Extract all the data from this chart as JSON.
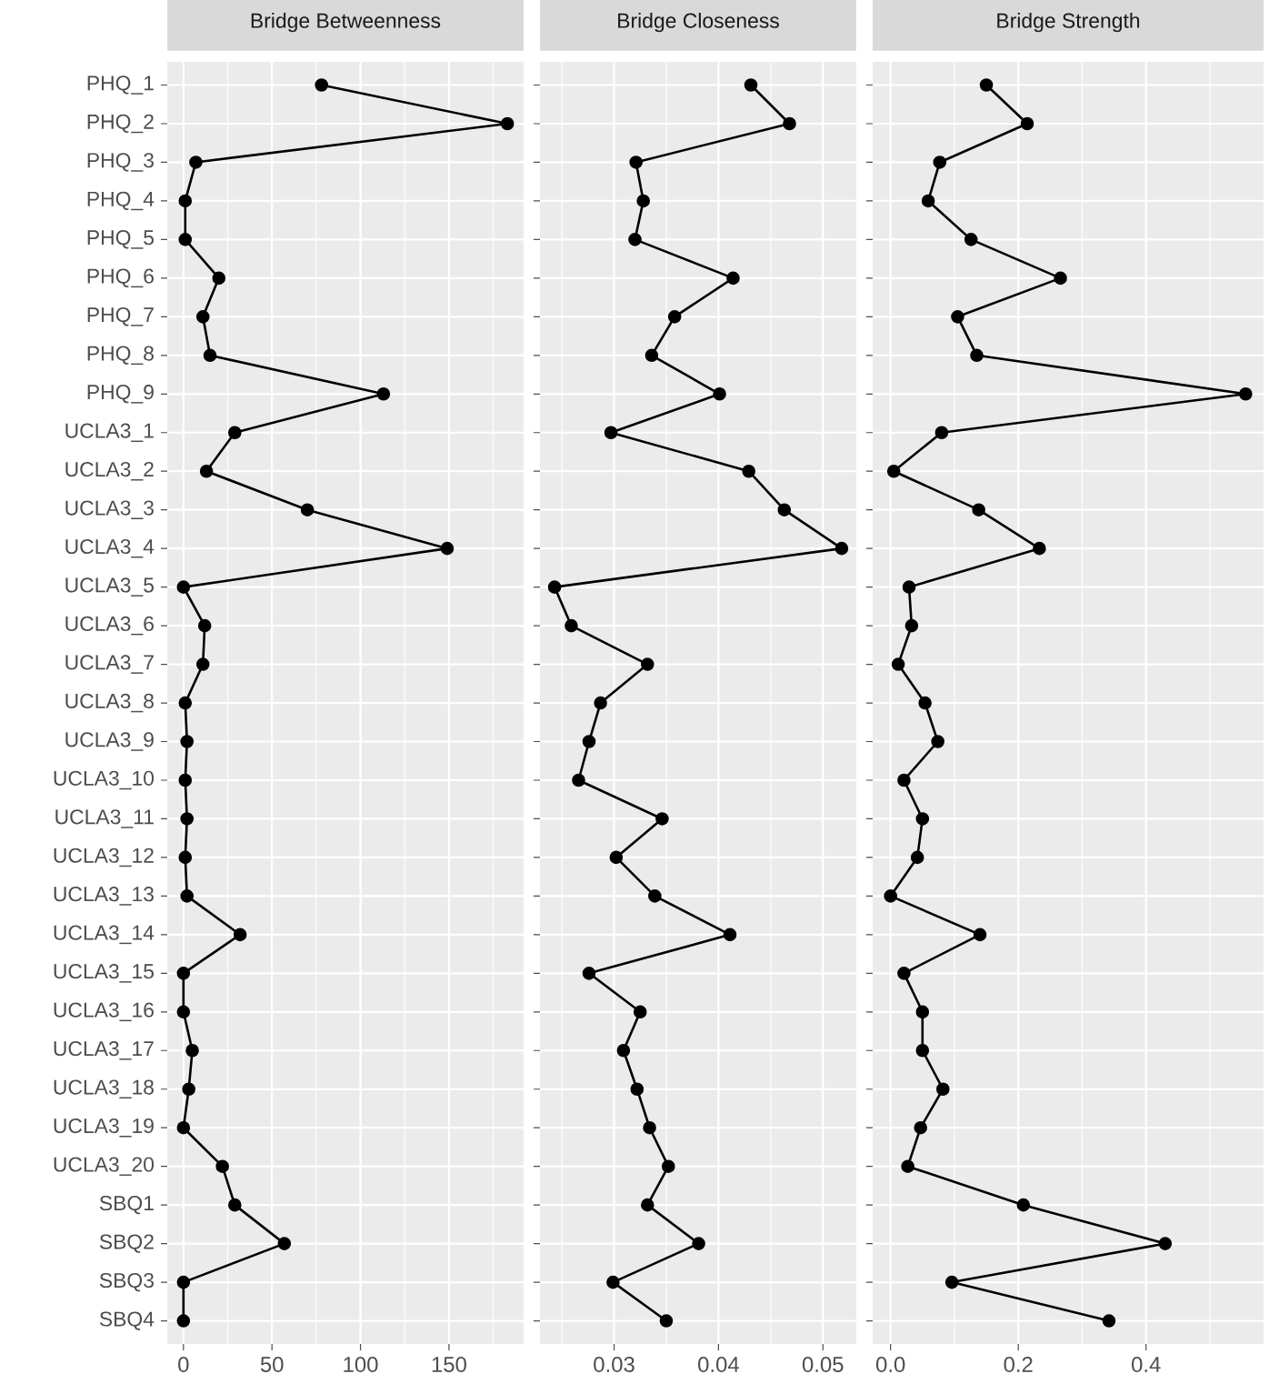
{
  "chart_data": [
    {
      "type": "line",
      "orientation": "horizontal",
      "title": "Bridge Betweenness",
      "color": "#000000",
      "marker": "circle",
      "grid": true,
      "categories": [
        "PHQ_1",
        "PHQ_2",
        "PHQ_3",
        "PHQ_4",
        "PHQ_5",
        "PHQ_6",
        "PHQ_7",
        "PHQ_8",
        "PHQ_9",
        "UCLA3_1",
        "UCLA3_2",
        "UCLA3_3",
        "UCLA3_4",
        "UCLA3_5",
        "UCLA3_6",
        "UCLA3_7",
        "UCLA3_8",
        "UCLA3_9",
        "UCLA3_10",
        "UCLA3_11",
        "UCLA3_12",
        "UCLA3_13",
        "UCLA3_14",
        "UCLA3_15",
        "UCLA3_16",
        "UCLA3_17",
        "UCLA3_18",
        "UCLA3_19",
        "UCLA3_20",
        "SBQ1",
        "SBQ2",
        "SBQ3",
        "SBQ4"
      ],
      "values": [
        78,
        183,
        7,
        1,
        1,
        20,
        11,
        15,
        113,
        29,
        13,
        70,
        149,
        0,
        12,
        11,
        1,
        2,
        1,
        2,
        1,
        2,
        32,
        0,
        0,
        5,
        3,
        0,
        22,
        29,
        57,
        0,
        0
      ],
      "xlim": [
        -9.15,
        192.15
      ],
      "xticks": [
        0,
        50,
        100,
        150
      ]
    },
    {
      "type": "line",
      "orientation": "horizontal",
      "title": "Bridge Closeness",
      "color": "#000000",
      "marker": "circle",
      "grid": true,
      "categories": [
        null,
        null,
        null,
        null,
        null,
        null,
        null,
        null,
        null,
        null,
        null,
        null,
        null,
        null,
        null,
        null,
        null,
        null,
        null,
        null,
        null,
        null,
        null,
        null,
        null,
        null,
        null,
        null,
        null,
        null,
        null,
        null,
        null
      ],
      "values": [
        0.0431,
        0.0468,
        0.0321,
        0.0328,
        0.032,
        0.0414,
        0.0358,
        0.0336,
        0.0401,
        0.0297,
        0.0429,
        0.0463,
        0.0518,
        0.0243,
        0.0259,
        0.0332,
        0.0287,
        0.0276,
        0.0266,
        0.0346,
        0.0302,
        0.0339,
        0.0411,
        0.0276,
        0.0325,
        0.0309,
        0.0322,
        0.0334,
        0.0352,
        0.0332,
        0.0381,
        0.0299,
        0.035
      ],
      "xlim": [
        0.0229,
        0.0532
      ],
      "xticks": [
        0.03,
        0.04,
        0.05
      ]
    },
    {
      "type": "line",
      "orientation": "horizontal",
      "title": "Bridge Strength",
      "color": "#000000",
      "marker": "circle",
      "grid": true,
      "categories": [
        null,
        null,
        null,
        null,
        null,
        null,
        null,
        null,
        null,
        null,
        null,
        null,
        null,
        null,
        null,
        null,
        null,
        null,
        null,
        null,
        null,
        null,
        null,
        null,
        null,
        null,
        null,
        null,
        null,
        null,
        null,
        null,
        null
      ],
      "values": [
        0.15,
        0.214,
        0.077,
        0.059,
        0.126,
        0.266,
        0.105,
        0.135,
        0.556,
        0.08,
        0.005,
        0.138,
        0.233,
        0.029,
        0.033,
        0.012,
        0.054,
        0.074,
        0.021,
        0.05,
        0.042,
        0.0,
        0.14,
        0.021,
        0.05,
        0.05,
        0.082,
        0.047,
        0.027,
        0.208,
        0.43,
        0.096,
        0.342
      ],
      "xlim": [
        -0.028,
        0.584
      ],
      "xticks": [
        {
          "value": 0,
          "label": "0.0"
        },
        {
          "value": 0.2,
          "label": "0.2"
        },
        {
          "value": 0.4,
          "label": "0.4"
        }
      ]
    }
  ]
}
